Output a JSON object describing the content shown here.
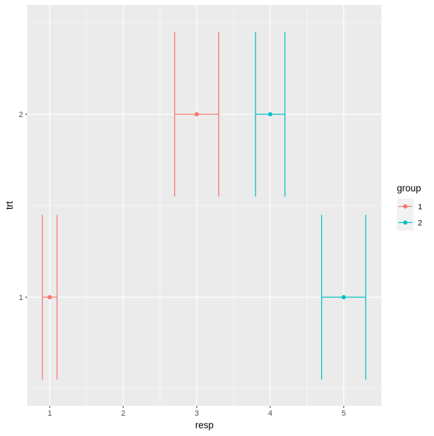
{
  "chart_data": {
    "type": "errorbar",
    "title": "",
    "xlabel": "resp",
    "ylabel": "trt",
    "xlim": [
      0.68,
      5.5
    ],
    "ylim": [
      0.4,
      2.6
    ],
    "x_ticks": [
      1,
      2,
      3,
      4,
      5
    ],
    "x_tick_labels": [
      "1",
      "2",
      "3",
      "4",
      "5"
    ],
    "y_ticks": [
      1,
      2
    ],
    "y_tick_labels": [
      "1",
      "2"
    ],
    "grid": true,
    "legend": {
      "title": "group",
      "position": "right",
      "entries": [
        "1",
        "2"
      ]
    },
    "series": [
      {
        "name": "1",
        "color": "#F8766D",
        "points": [
          {
            "trt": 1,
            "resp": 1,
            "xmin": 0.9,
            "xmax": 1.1,
            "ymin": 0.55,
            "ymax": 1.45
          },
          {
            "trt": 2,
            "resp": 3,
            "xmin": 2.7,
            "xmax": 3.3,
            "ymin": 1.55,
            "ymax": 2.45
          }
        ]
      },
      {
        "name": "2",
        "color": "#00BFC4",
        "points": [
          {
            "trt": 1,
            "resp": 5,
            "xmin": 4.7,
            "xmax": 5.3,
            "ymin": 0.55,
            "ymax": 1.45
          },
          {
            "trt": 2,
            "resp": 4,
            "xmin": 3.8,
            "xmax": 4.2,
            "ymin": 1.55,
            "ymax": 2.45
          }
        ]
      }
    ]
  },
  "colors": {
    "panel_bg": "#EBEBEB",
    "grid": "#FFFFFF",
    "legend_key_bg": "#F2F2F2"
  }
}
